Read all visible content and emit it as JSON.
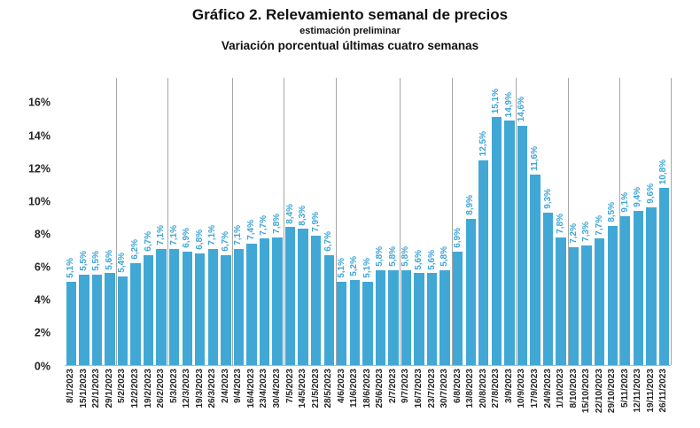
{
  "title": "Gráfico 2. Relevamiento semanal de precios",
  "subtitle": "estimación preliminar",
  "subtitle2": "Variación porcentual últimas cuatro semanas",
  "chart_data": {
    "type": "bar",
    "title": "Gráfico 2. Relevamiento semanal de precios",
    "subtitle": "estimación preliminar",
    "subtitle2": "Variación porcentual últimas cuatro semanas",
    "xlabel": "",
    "ylabel": "",
    "categories": [
      "8/1/2023",
      "15/1/2023",
      "22/1/2023",
      "29/1/2023",
      "5/2/2023",
      "12/2/2023",
      "19/2/2023",
      "26/2/2023",
      "5/3/2023",
      "12/3/2023",
      "19/3/2023",
      "26/3/2023",
      "2/4/2023",
      "9/4/2023",
      "16/4/2023",
      "23/4/2023",
      "30/4/2023",
      "7/5/2023",
      "14/5/2023",
      "21/5/2023",
      "28/5/2023",
      "4/6/2023",
      "11/6/2023",
      "18/6/2023",
      "25/6/2023",
      "2/7/2023",
      "9/7/2023",
      "16/7/2023",
      "23/7/2023",
      "30/7/2023",
      "6/8/2023",
      "13/8/2023",
      "20/8/2023",
      "27/8/2023",
      "3/9/2023",
      "10/9/2023",
      "17/9/2023",
      "24/9/2023",
      "1/10/2023",
      "8/10/2023",
      "15/10/2023",
      "22/10/2023",
      "29/10/2023",
      "5/11/2023",
      "12/11/2023",
      "19/11/2023",
      "26/11/2023"
    ],
    "values": [
      5.1,
      5.5,
      5.5,
      5.6,
      5.4,
      6.2,
      6.7,
      7.1,
      7.1,
      6.9,
      6.8,
      7.1,
      6.7,
      7.1,
      7.4,
      7.7,
      7.8,
      8.4,
      8.3,
      7.9,
      6.7,
      5.1,
      5.2,
      5.1,
      5.8,
      5.8,
      5.8,
      5.6,
      5.6,
      5.8,
      6.9,
      8.9,
      12.5,
      15.1,
      14.9,
      14.6,
      11.6,
      9.3,
      7.8,
      7.2,
      7.3,
      7.7,
      8.5,
      9.1,
      9.4,
      9.6,
      10.8
    ],
    "value_labels": [
      "5,1%",
      "5,5%",
      "5,5%",
      "5,6%",
      "5,4%",
      "6,2%",
      "6,7%",
      "7,1%",
      "7,1%",
      "6,9%",
      "6,8%",
      "7,1%",
      "6,7%",
      "7,1%",
      "7,4%",
      "7,7%",
      "7,8%",
      "8,4%",
      "8,3%",
      "7,9%",
      "6,7%",
      "5,1%",
      "5,2%",
      "5,1%",
      "5,8%",
      "5,8%",
      "5,8%",
      "5,6%",
      "5,6%",
      "5,8%",
      "6,9%",
      "8,9%",
      "12,5%",
      "15,1%",
      "14,9%",
      "14,6%",
      "11,6%",
      "9,3%",
      "7,8%",
      "7,2%",
      "7,3%",
      "7,7%",
      "8,5%",
      "9,1%",
      "9,4%",
      "9,6%",
      "10,8%"
    ],
    "ylim": [
      0,
      17.5
    ],
    "yticks": [
      0,
      2,
      4,
      6,
      8,
      10,
      12,
      14,
      16
    ],
    "ytick_labels": [
      "0%",
      "2%",
      "4%",
      "6%",
      "8%",
      "10%",
      "12%",
      "14%",
      "16%"
    ],
    "grid": "vertical month-separator lines only, no horizontal gridlines",
    "legend": "none",
    "month_separator_after_index": [
      4,
      8,
      13,
      17,
      21,
      26,
      30,
      35,
      39,
      43,
      47
    ],
    "bar_color": "#41a8d6",
    "value_label_color": "#3fa5d6",
    "separator_color": "#a6a6a6",
    "axis_text_color": "#262626"
  }
}
